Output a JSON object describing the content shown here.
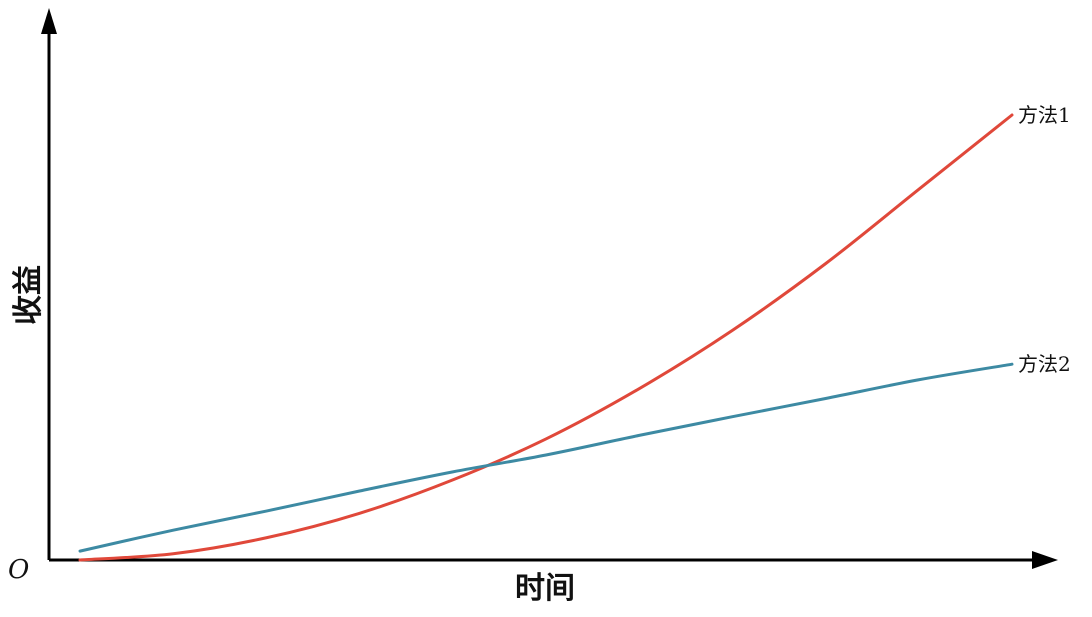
{
  "chart_data": {
    "type": "line",
    "title": "",
    "xlabel": "时间",
    "ylabel": "收益",
    "origin_label": "O",
    "x_ticks": [],
    "y_ticks": [],
    "xlim": [
      0,
      10
    ],
    "ylim": [
      0,
      10
    ],
    "grid": false,
    "legend": "inline-right",
    "axis_color": "#000000",
    "series": [
      {
        "name": "方法1",
        "color": "#e0483a",
        "x": [
          0,
          1,
          2,
          3,
          4,
          5,
          6,
          7,
          8,
          9,
          10
        ],
        "y": [
          0,
          0.14,
          0.5,
          1.05,
          1.8,
          2.72,
          3.85,
          5.16,
          6.66,
          8.33,
          10.0
        ]
      },
      {
        "name": "方法2",
        "color": "#3d8aa3",
        "x": [
          0,
          1,
          2,
          3,
          4,
          5,
          6,
          7,
          8,
          9,
          10
        ],
        "y": [
          0.2,
          0.67,
          1.1,
          1.55,
          1.98,
          2.36,
          2.8,
          3.22,
          3.63,
          4.05,
          4.4
        ]
      }
    ]
  }
}
